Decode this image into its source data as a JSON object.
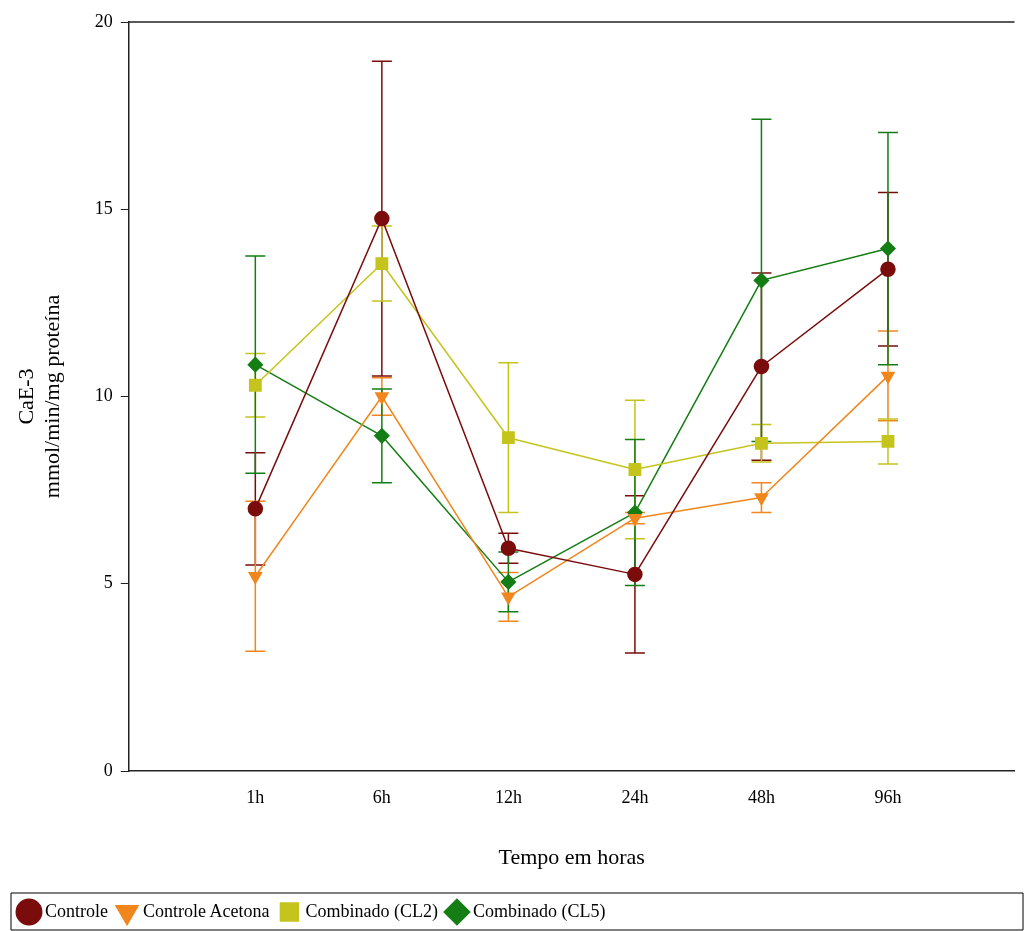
{
  "chart_data": {
    "type": "line",
    "xlabel": "Tempo em horas",
    "ylabel": "CaE-3\nmmol/min/mg proteína",
    "categories": [
      "1h",
      "6h",
      "12h",
      "24h",
      "48h",
      "96h"
    ],
    "ylim": [
      0,
      20
    ],
    "yticks": [
      0,
      5,
      10,
      15,
      20
    ],
    "grid": false,
    "legend": "bottom left",
    "series": [
      {
        "name": "Controle",
        "color": "#7a0c0c",
        "marker": "circle",
        "values": [
          7.0,
          14.75,
          5.95,
          5.25,
          10.8,
          13.4
        ],
        "errors": [
          1.5,
          4.2,
          0.4,
          2.1,
          2.5,
          2.05
        ]
      },
      {
        "name": "Controle Acetona",
        "color": "#f0861c",
        "marker": "triangle",
        "values": [
          5.2,
          10.0,
          4.65,
          6.75,
          7.3,
          10.55
        ],
        "errors": [
          2.0,
          0.5,
          0.65,
          0.15,
          0.4,
          1.2
        ]
      },
      {
        "name": "Combinado (CL2)",
        "color": "#c4c41c",
        "marker": "square",
        "values": [
          10.3,
          13.55,
          8.9,
          8.05,
          8.75,
          8.8
        ],
        "errors": [
          0.85,
          1.0,
          2.0,
          1.85,
          0.5,
          0.6
        ]
      },
      {
        "name": "Combinado (CL5)",
        "color": "#147d14",
        "marker": "diamond",
        "values": [
          10.85,
          8.95,
          5.05,
          6.9,
          13.1,
          13.95
        ],
        "errors": [
          2.9,
          1.25,
          0.8,
          1.95,
          4.3,
          3.1
        ]
      }
    ]
  }
}
